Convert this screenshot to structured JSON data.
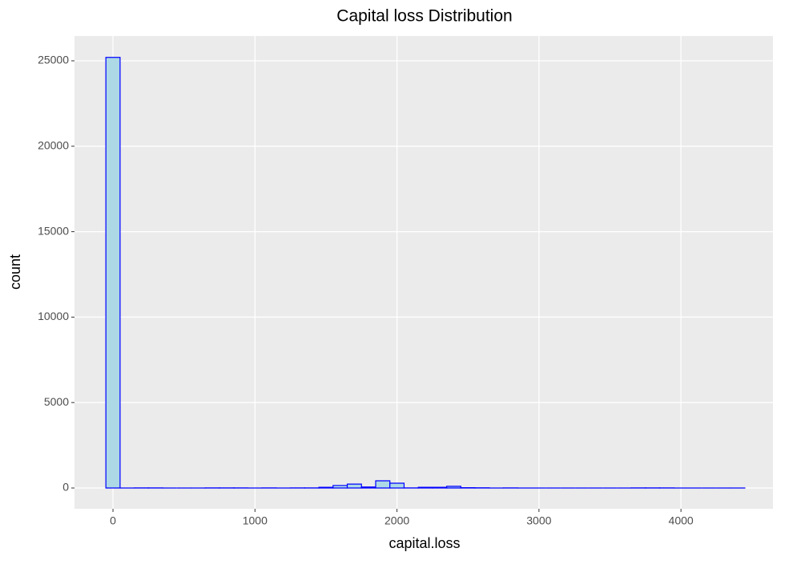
{
  "chart_data": {
    "type": "histogram",
    "title": "Capital loss Distribution",
    "x_label": "capital.loss",
    "y_label": "count",
    "bins": [
      -50,
      50,
      150,
      250,
      350,
      450,
      550,
      650,
      750,
      850,
      950,
      1050,
      1150,
      1250,
      1350,
      1450,
      1550,
      1650,
      1750,
      1850,
      1950,
      2050,
      2150,
      2250,
      2350,
      2450,
      2550,
      2650,
      2750,
      2850,
      2950,
      3050,
      3150,
      3250,
      3350,
      3450,
      3550,
      3650,
      3750,
      3850,
      3950,
      4050,
      4150,
      4250,
      4350,
      4450
    ],
    "values": [
      25200,
      0,
      5,
      5,
      0,
      0,
      3,
      5,
      5,
      5,
      0,
      5,
      0,
      5,
      10,
      40,
      150,
      230,
      60,
      420,
      280,
      10,
      40,
      40,
      100,
      20,
      15,
      0,
      10,
      0,
      0,
      0,
      0,
      0,
      0,
      0,
      0,
      5,
      5,
      5,
      0,
      0,
      0,
      0,
      3
    ],
    "fill": "#add8e6",
    "color": "#0000ff",
    "xlim": [
      -271,
      4648
    ],
    "ylim": [
      -1217,
      26451
    ],
    "xticks": [
      0,
      1000,
      2000,
      3000,
      4000
    ],
    "yticks": [
      0,
      5000,
      10000,
      15000,
      20000,
      25000
    ],
    "grid": true
  }
}
